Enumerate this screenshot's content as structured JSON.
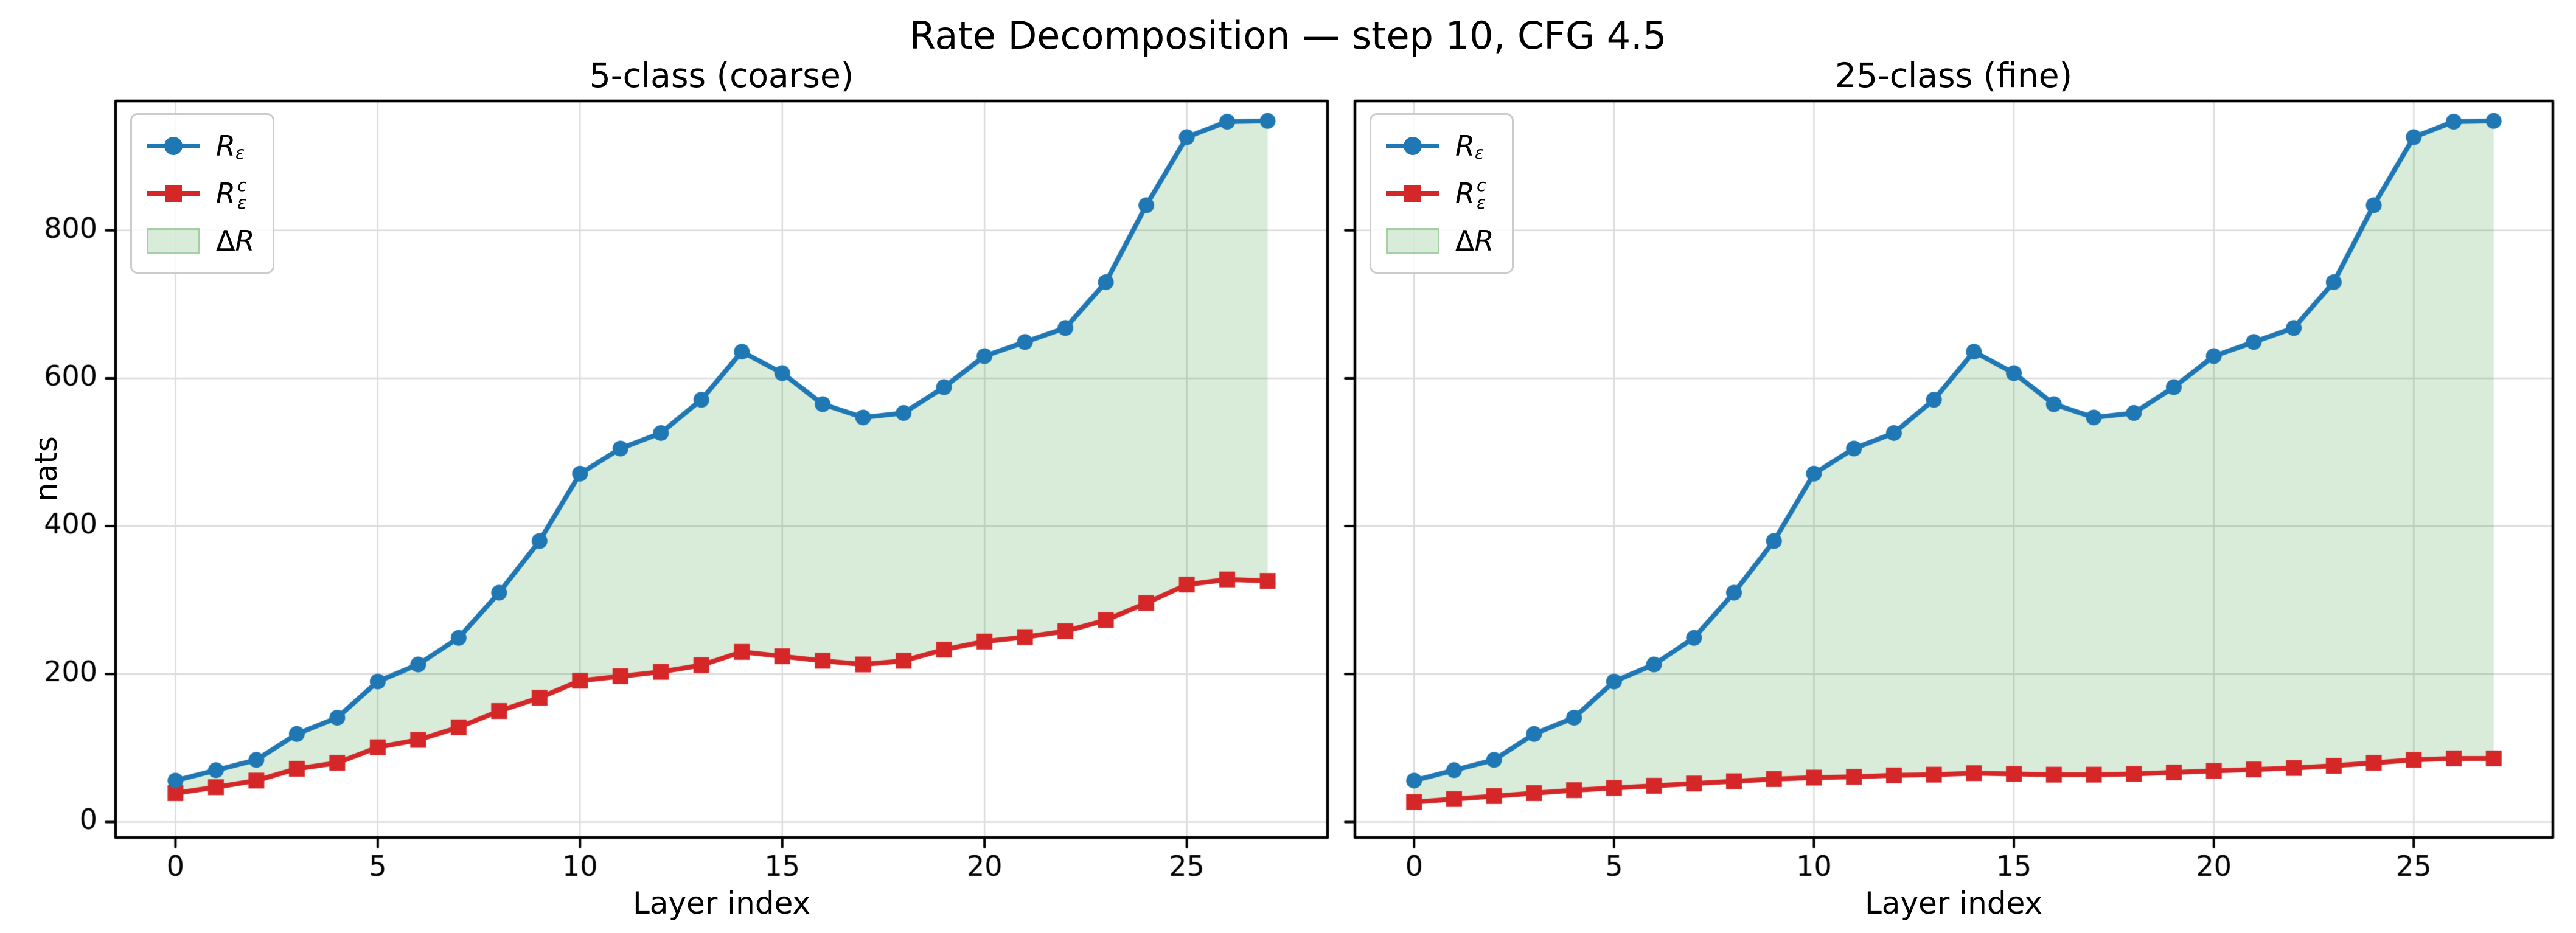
{
  "figure": {
    "title": "Rate Decomposition — step 10, CFG 4.5"
  },
  "legend": {
    "r": "R",
    "eps": "ε",
    "c": "c",
    "delta": "Δ"
  },
  "chart_data": {
    "type": "line",
    "x": [
      0,
      1,
      2,
      3,
      4,
      5,
      6,
      7,
      8,
      9,
      10,
      11,
      12,
      13,
      14,
      15,
      16,
      17,
      18,
      19,
      20,
      21,
      22,
      23,
      24,
      25,
      26,
      27
    ],
    "xlabel": "Layer index",
    "ylabel": "nats",
    "x_ticks": [
      0,
      5,
      10,
      15,
      20,
      25
    ],
    "y_ticks": [
      0,
      200,
      400,
      600,
      800
    ],
    "xlim": [
      -1.48,
      28.48
    ],
    "ylim": [
      -21,
      975
    ],
    "grid": true,
    "legend_position": "upper left",
    "legend_entries": [
      "R_ε",
      "R_ε^c",
      "ΔR"
    ],
    "colors": {
      "r_eps": "#1f77b4",
      "r_eps_c": "#d62728",
      "delta_fill": "rgba(0,128,0,0.15)",
      "grid": "#dcdcdc",
      "spine": "#000000"
    },
    "subplots": [
      {
        "title": "5-class (coarse)",
        "series": [
          {
            "name": "R_eps",
            "marker": "circle",
            "color": "#1f77b4",
            "values": [
              56,
              70,
              84,
              119,
              141,
              190,
              213,
              249,
              310,
              380,
              471,
              505,
              526,
              571,
              636,
              607,
              565,
              547,
              553,
              588,
              630,
              649,
              668,
              730,
              834,
              926,
              947,
              948
            ]
          },
          {
            "name": "R_eps_c",
            "marker": "square",
            "color": "#d62728",
            "values": [
              39,
              47,
              56,
              72,
              80,
              101,
              111,
              128,
              150,
              168,
              191,
              197,
              203,
              212,
              230,
              224,
              218,
              213,
              218,
              233,
              244,
              250,
              258,
              273,
              296,
              321,
              328,
              326
            ]
          }
        ],
        "band": "ΔR = R_ε − R_ε^c shaded between curves"
      },
      {
        "title": "25-class (fine)",
        "series": [
          {
            "name": "R_eps",
            "marker": "circle",
            "color": "#1f77b4",
            "values": [
              56,
              70,
              84,
              119,
              141,
              190,
              213,
              249,
              310,
              380,
              471,
              505,
              526,
              571,
              636,
              607,
              565,
              547,
              553,
              588,
              630,
              649,
              668,
              730,
              834,
              926,
              947,
              948
            ]
          },
          {
            "name": "R_eps_c",
            "marker": "square",
            "color": "#d62728",
            "values": [
              27,
              31,
              35,
              39,
              43,
              46,
              49,
              52,
              55,
              58,
              60,
              61,
              63,
              64,
              66,
              65,
              64,
              64,
              65,
              67,
              69,
              71,
              73,
              76,
              80,
              84,
              86,
              86
            ]
          }
        ],
        "band": "ΔR = R_ε − R_ε^c shaded between curves"
      }
    ],
    "layout": {
      "plot_top": 166,
      "plot_bottom": 1377,
      "plots": [
        {
          "left": 190,
          "right": 2182
        },
        {
          "left": 2227,
          "right": 4196
        }
      ]
    }
  }
}
